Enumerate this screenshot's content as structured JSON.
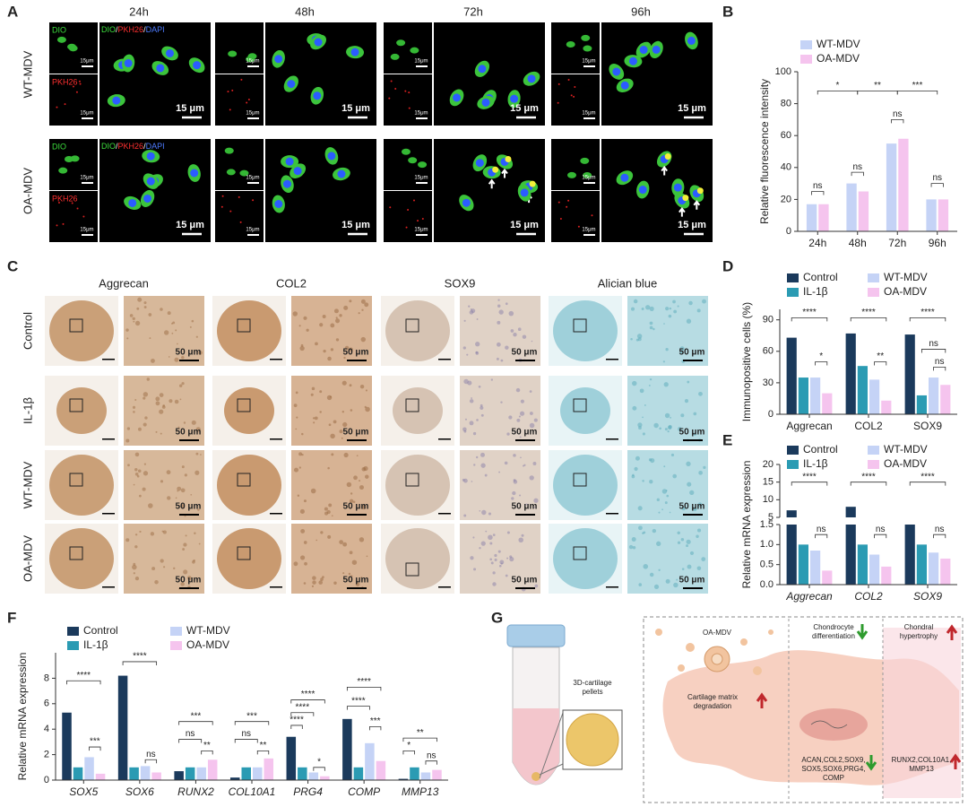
{
  "panel_labels": [
    "A",
    "B",
    "C",
    "D",
    "E",
    "F",
    "G"
  ],
  "panel_a": {
    "columns": [
      "24h",
      "48h",
      "72h",
      "96h"
    ],
    "rows": [
      "WT-MDV",
      "OA-MDV"
    ],
    "inset_labels": [
      "DIO",
      "PKH26"
    ],
    "merge_label": [
      "DIO",
      "/",
      "PKH26",
      "/",
      "DAPI"
    ],
    "scale_small": "15μm",
    "scale_large": "15 μm"
  },
  "panel_c": {
    "columns": [
      "Aggrecan",
      "COL2",
      "SOX9",
      "Alician blue"
    ],
    "rows": [
      "Control",
      "IL-1β",
      "WT-MDV",
      "OA-MDV"
    ],
    "scale": "50 μm"
  },
  "panel_g": {
    "pellet_label": [
      "3D-cartilage",
      "pellets"
    ],
    "vesicle_label": [
      "OA-MDV"
    ],
    "differentiation": [
      "Chondrocyte",
      "differentiation"
    ],
    "hypertrophy": [
      "Chondral",
      "hypertrophy"
    ],
    "degradation": [
      "Cartilage matrix",
      "degradation"
    ],
    "down_genes": [
      "ACAN,COL2,SOX9,",
      "SOX5,SOX6,PRG4,",
      "COMP"
    ],
    "up_genes": [
      "RUNX2,COL10A1,",
      "MMP13"
    ]
  },
  "chart_data": [
    {
      "type": "bar",
      "categories": [
        "24h",
        "48h",
        "72h",
        "96h"
      ],
      "series": [
        {
          "name": "WT-MDV",
          "color": "#c5d3f6",
          "values": [
            17,
            30,
            55,
            20
          ]
        },
        {
          "name": "OA-MDV",
          "color": "#f5c4ee",
          "values": [
            17,
            25,
            58,
            20
          ]
        }
      ],
      "y_label": "Relative fluorescence intensity",
      "ylim": [
        0,
        100
      ],
      "yticks": [
        0,
        20,
        40,
        60,
        80,
        100
      ],
      "annotations": [
        "ns",
        "ns",
        "ns",
        "ns",
        "*",
        "**",
        "***"
      ]
    },
    {
      "type": "bar",
      "categories": [
        "Aggrecan",
        "COL2",
        "SOX9"
      ],
      "series": [
        {
          "name": "Control",
          "color": "#1b3a5c",
          "values": [
            73,
            77,
            76
          ]
        },
        {
          "name": "IL-1β",
          "color": "#2b9bb3",
          "values": [
            35,
            46,
            18
          ]
        },
        {
          "name": "WT-MDV",
          "color": "#c5d3f6",
          "values": [
            35,
            33,
            35
          ]
        },
        {
          "name": "OA-MDV",
          "color": "#f5c4ee",
          "values": [
            20,
            13,
            28
          ]
        }
      ],
      "y_label": "Immunopositive cells (%)",
      "ylim": [
        0,
        100
      ],
      "yticks": [
        0,
        30,
        60,
        90
      ],
      "annotations": [
        "****",
        "*",
        "****",
        "**",
        "****",
        "ns",
        "ns"
      ]
    },
    {
      "type": "bar",
      "categories": [
        "Aggrecan",
        "COL2",
        "SOX9"
      ],
      "series": [
        {
          "name": "Control",
          "color": "#1b3a5c",
          "values": [
            7,
            8,
            1.5
          ]
        },
        {
          "name": "IL-1β",
          "color": "#2b9bb3",
          "values": [
            1.0,
            1.0,
            1.0
          ]
        },
        {
          "name": "WT-MDV",
          "color": "#c5d3f6",
          "values": [
            0.85,
            0.75,
            0.8
          ]
        },
        {
          "name": "OA-MDV",
          "color": "#f5c4ee",
          "values": [
            0.35,
            0.45,
            0.65
          ]
        }
      ],
      "y_label": "Relative mRNA expression",
      "ylim": [
        0,
        20
      ],
      "ybreak": [
        1.5,
        5
      ],
      "yticks": [
        {
          "value": 0,
          "label": "0.0"
        },
        0.5,
        {
          "value": 1,
          "label": "1.0"
        },
        1.5,
        5,
        10,
        15,
        20
      ],
      "annotations": [
        "****",
        "ns",
        "****",
        "ns",
        "****",
        "ns"
      ]
    },
    {
      "type": "bar",
      "categories": [
        "SOX5",
        "SOX6",
        "RUNX2",
        "COL10A1",
        "PRG4",
        "COMP",
        "MMP13"
      ],
      "series": [
        {
          "name": "Control",
          "color": "#1b3a5c",
          "values": [
            5.3,
            8.2,
            0.7,
            0.2,
            3.4,
            4.8,
            0.1
          ]
        },
        {
          "name": "IL-1β",
          "color": "#2b9bb3",
          "values": [
            1.0,
            1.0,
            1.0,
            1.0,
            1.0,
            1.0,
            1.0
          ]
        },
        {
          "name": "WT-MDV",
          "color": "#c5d3f6",
          "values": [
            1.8,
            1.1,
            1.0,
            1.0,
            0.6,
            2.9,
            0.6
          ]
        },
        {
          "name": "OA-MDV",
          "color": "#f5c4ee",
          "values": [
            0.5,
            0.6,
            1.6,
            1.7,
            0.3,
            1.5,
            0.8
          ]
        }
      ],
      "y_label": "Relative mRNA expression",
      "ylim": [
        0,
        10
      ],
      "yticks": [
        0,
        2,
        4,
        6,
        8
      ],
      "annotations": [
        "****",
        "***",
        "****",
        "ns",
        "***",
        "ns",
        "**",
        "***",
        "ns",
        "**",
        "****",
        "****",
        "****",
        "*",
        "****",
        "****",
        "***",
        "**",
        "*",
        "ns"
      ]
    }
  ]
}
